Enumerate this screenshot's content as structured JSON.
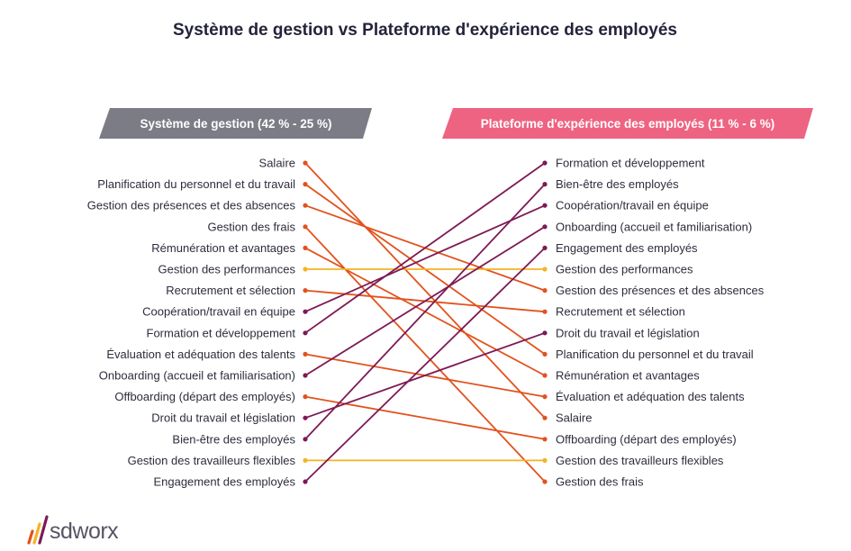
{
  "chart_data": {
    "type": "slope",
    "title": "Système de gestion vs Plateforme d'expérience des employés",
    "left_header": "Système de gestion (42 % - 25 %)",
    "right_header": "Plateforme d'expérience des employés (11 % - 6 %)",
    "left_items": [
      "Salaire",
      "Planification du personnel et du travail",
      "Gestion des présences et des absences",
      "Gestion des frais",
      "Rémunération et avantages",
      "Gestion des performances",
      "Recrutement et sélection",
      "Coopération/travail en équipe",
      "Formation et développement",
      "Évaluation et adéquation des talents",
      "Onboarding (accueil et familiarisation)",
      "Offboarding (départ des employés)",
      "Droit du travail et législation",
      "Bien-être des employés",
      "Gestion des travailleurs flexibles",
      "Engagement des employés"
    ],
    "right_items": [
      "Formation et développement",
      "Bien-être des employés",
      "Coopération/travail en équipe",
      "Onboarding (accueil et familiarisation)",
      "Engagement des employés",
      "Gestion des performances",
      "Gestion des présences et des absences",
      "Recrutement et sélection",
      "Droit du travail et législation",
      "Planification du personnel et du travail",
      "Rémunération et avantages",
      "Évaluation et adéquation des talents",
      "Salaire",
      "Offboarding (départ des employés)",
      "Gestion des travailleurs flexibles",
      "Gestion des frais"
    ],
    "line_categories": {
      "Salaire": "down",
      "Planification du personnel et du travail": "down",
      "Gestion des présences et des absences": "down",
      "Gestion des frais": "down",
      "Rémunération et avantages": "down",
      "Gestion des performances": "same",
      "Recrutement et sélection": "down",
      "Coopération/travail en équipe": "up",
      "Formation et développement": "up",
      "Évaluation et adéquation des talents": "down",
      "Onboarding (accueil et familiarisation)": "up",
      "Offboarding (départ des employés)": "down",
      "Droit du travail et législation": "up",
      "Bien-être des employés": "up",
      "Gestion des travailleurs flexibles": "same",
      "Engagement des employés": "up"
    },
    "colors": {
      "down": "#e2521d",
      "up": "#7d1a55",
      "same": "#f5b325",
      "left_header_bg": "#7b7c86",
      "right_header_bg": "#ee6382",
      "header_text": "#ffffff"
    }
  },
  "logo": {
    "text": "sdworx",
    "colors": [
      "#e2521d",
      "#f5b325",
      "#7d1a55"
    ]
  }
}
